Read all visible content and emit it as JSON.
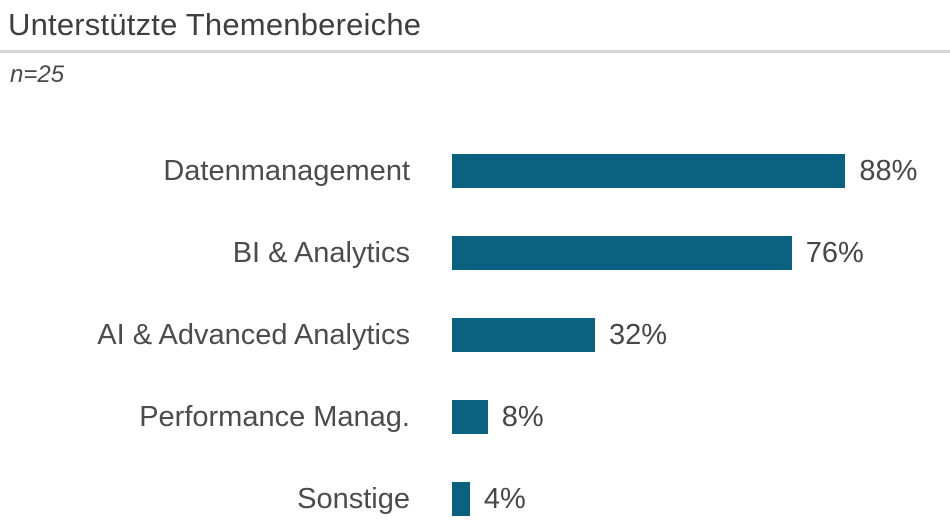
{
  "header": {
    "title": "Unterstützte Themenbereiche",
    "subtitle": "n=25"
  },
  "colors": {
    "bar": "#0b6180",
    "title_text": "#3f3f3f",
    "label_text": "#4c4c4c",
    "value_text": "#474747",
    "divider": "#d5d5d5",
    "background": "#ffffff"
  },
  "chart_data": {
    "type": "bar",
    "orientation": "horizontal",
    "title": "Unterstützte Themenbereiche",
    "subtitle": "n=25",
    "sample_size": 25,
    "categories": [
      "Datenmanagement",
      "BI & Analytics",
      "AI & Advanced Analytics",
      "Performance Manag.",
      "Sonstige"
    ],
    "values": [
      88,
      76,
      32,
      8,
      4
    ],
    "value_labels": [
      "88%",
      "76%",
      "32%",
      "8%",
      "4%"
    ],
    "unit": "percent",
    "xlim": [
      0,
      100
    ],
    "grid": false,
    "legend": false,
    "bar_color": "#0b6180"
  }
}
